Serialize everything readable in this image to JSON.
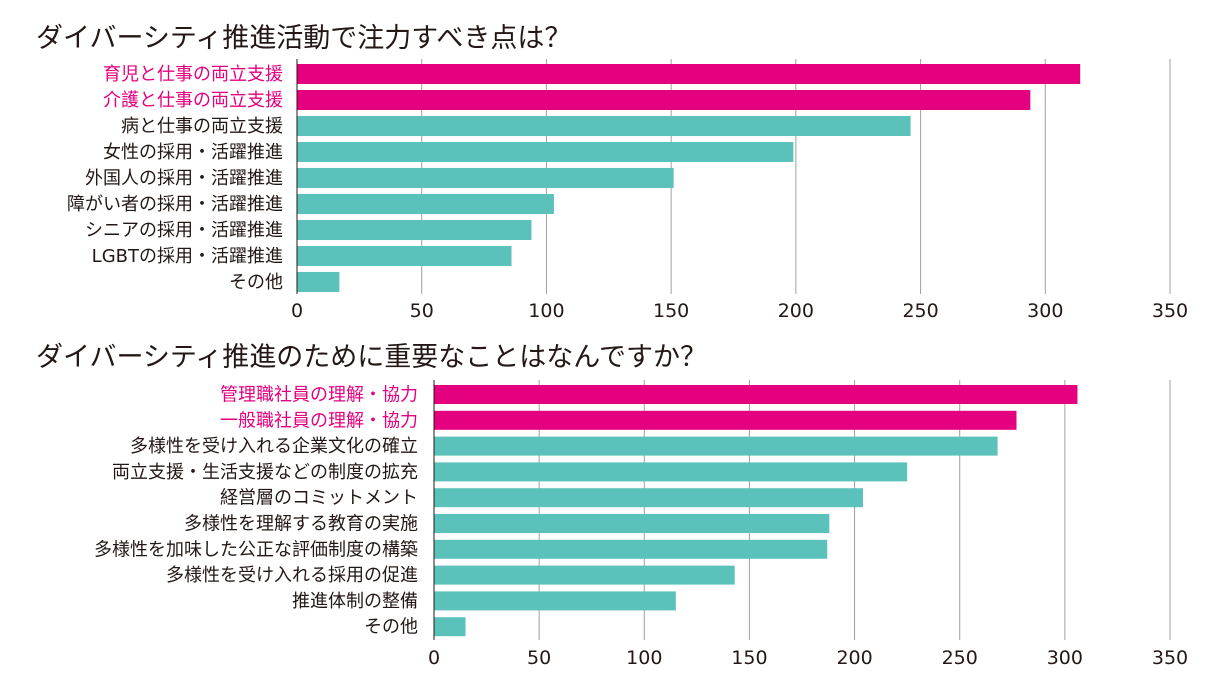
{
  "chart_data": [
    {
      "type": "bar",
      "orientation": "horizontal",
      "title": "ダイバーシティ推進活動で注力すべき点は？",
      "categories": [
        "育児と仕事の両立支援",
        "介護と仕事の両立支援",
        "病と仕事の両立支援",
        "女性の採用・活躍推進",
        "外国人の採用・活躍推進",
        "障がい者の採用・活躍推進",
        "シニアの採用・活躍推進",
        "LGBTの採用・活躍推進",
        "その他"
      ],
      "values": [
        314,
        294,
        246,
        199,
        151,
        103,
        94,
        86,
        17
      ],
      "highlight_count": 2,
      "xticks": [
        "0",
        "50",
        "100",
        "150",
        "200",
        "250",
        "300",
        "350"
      ],
      "xlim": [
        0,
        350
      ],
      "grid": true
    },
    {
      "type": "bar",
      "orientation": "horizontal",
      "title": "ダイバーシティ推進のために重要なことはなんですか？",
      "categories": [
        "管理職社員の理解・協力",
        "一般職社員の理解・協力",
        "多様性を受け入れる企業文化の確立",
        "両立支援・生活支援などの制度の拡充",
        "経営層のコミットメント",
        "多様性を理解する教育の実施",
        "多様性を加味した公正な評価制度の構築",
        "多様性を受け入れる採用の促進",
        "推進体制の整備",
        "その他"
      ],
      "values": [
        306,
        277,
        268,
        225,
        204,
        188,
        187,
        143,
        115,
        15
      ],
      "highlight_count": 2,
      "xticks": [
        "0",
        "50",
        "100",
        "150",
        "200",
        "250",
        "300",
        "350"
      ],
      "xlim": [
        0,
        350
      ],
      "grid": true
    }
  ],
  "colors": {
    "highlight": "#e4007f",
    "bar": "#5bc2bb",
    "grid": "#a0a0a0",
    "text": "#231815"
  }
}
